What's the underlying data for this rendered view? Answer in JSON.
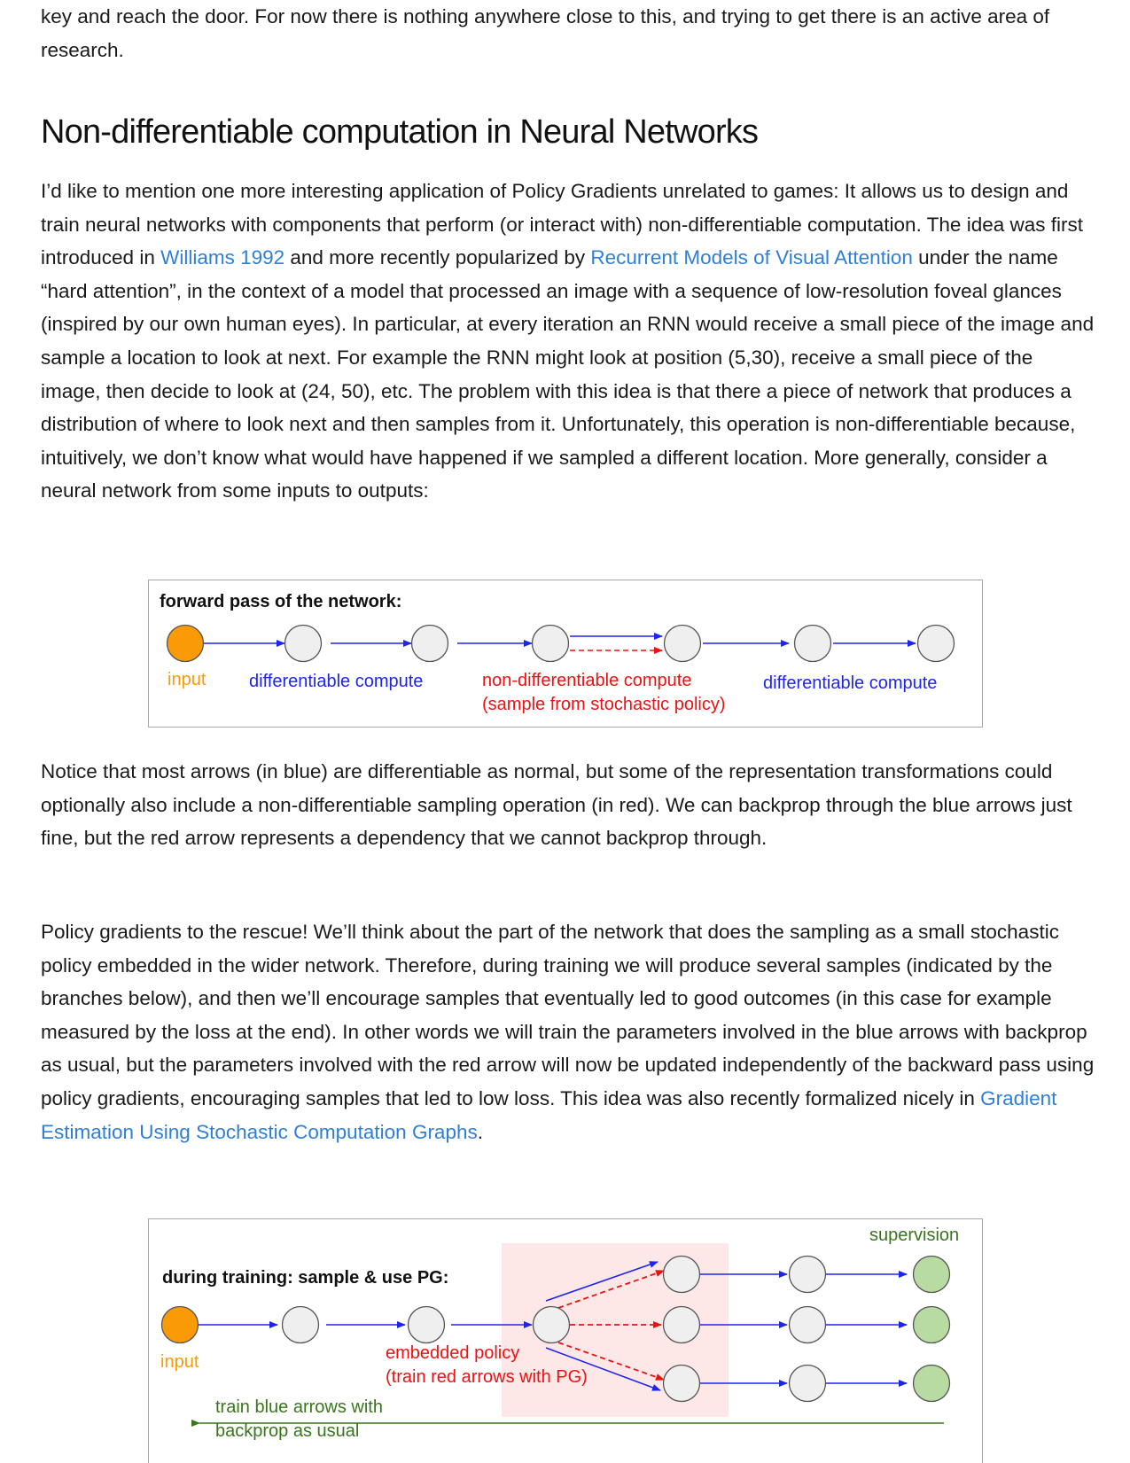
{
  "intro": {
    "text": "key and reach the door. For now there is nothing anywhere close to this, and trying to get there is an active area of research."
  },
  "section": {
    "heading": "Non-differentiable computation in Neural Networks"
  },
  "para1": {
    "t1": "I’d like to mention one more interesting application of Policy Gradients unrelated to games: It allows us to design and train neural networks with components that perform (or interact with) non-differentiable computation. The idea was first introduced in ",
    "link1": "Williams 1992",
    "t2": " and more recently popularized by ",
    "link2": "Recurrent Models of Visual Attention",
    "t3": " under the name “hard attention”, in the context of a model that processed an image with a sequence of low-resolution foveal glances (inspired by our own human eyes). In particular, at every iteration an RNN would receive a small piece of the image and sample a location to look at next. For example the RNN might look at position (5,30), receive a small piece of the image, then decide to look at (24, 50), etc. The problem with this idea is that there a piece of network that produces a distribution of where to look next and then samples from it. Unfortunately, this operation is non-differentiable because, intuitively, we don’t know what would have happened if we sampled a different location. More generally, consider a neural network from some inputs to outputs:"
  },
  "figure1": {
    "title": "forward pass of the network:",
    "label_input": "input",
    "label_diff1": "differentiable compute",
    "label_nondiff_1": "non-differentiable compute",
    "label_nondiff_2": "(sample from stochastic policy)",
    "label_diff2": "differentiable compute"
  },
  "para2": {
    "text": "Notice that most arrows (in blue) are differentiable as normal, but some of the representation transformations could optionally also include a non-differentiable sampling operation (in red). We can backprop through the blue arrows just fine, but the red arrow represents a dependency that we cannot backprop through."
  },
  "para3": {
    "t1": "Policy gradients to the rescue! We’ll think about the part of the network that does the sampling as a small stochastic policy embedded in the wider network. Therefore, during training we will produce several samples (indicated by the branches below), and then we’ll encourage samples that eventually led to good outcomes (in this case for example measured by the loss at the end). In other words we will train the parameters involved in the blue arrows with backprop as usual, but the parameters involved with the red arrow will now be updated independently of the backward pass using policy gradients, encouraging samples that led to low loss. This idea was also recently formalized nicely in ",
    "link": "Gradient Estimation Using Stochastic Computation Graphs",
    "t2": "."
  },
  "figure2": {
    "title": "during training: sample & use PG:",
    "label_supervision": "supervision",
    "label_input": "input",
    "label_policy_1": "embedded policy",
    "label_policy_2": "(train red arrows with PG)",
    "label_backprop_1": "train blue arrows with",
    "label_backprop_2": "backprop as usual"
  },
  "colors": {
    "blue": "#1f25f0",
    "red": "#ee1111",
    "orange": "#fb9a07",
    "green": "#38761d",
    "green_node": "#b7dba0",
    "node_gray": "#efefef",
    "policy_bg": "#fde7e7",
    "link": "#2f7fd6"
  }
}
